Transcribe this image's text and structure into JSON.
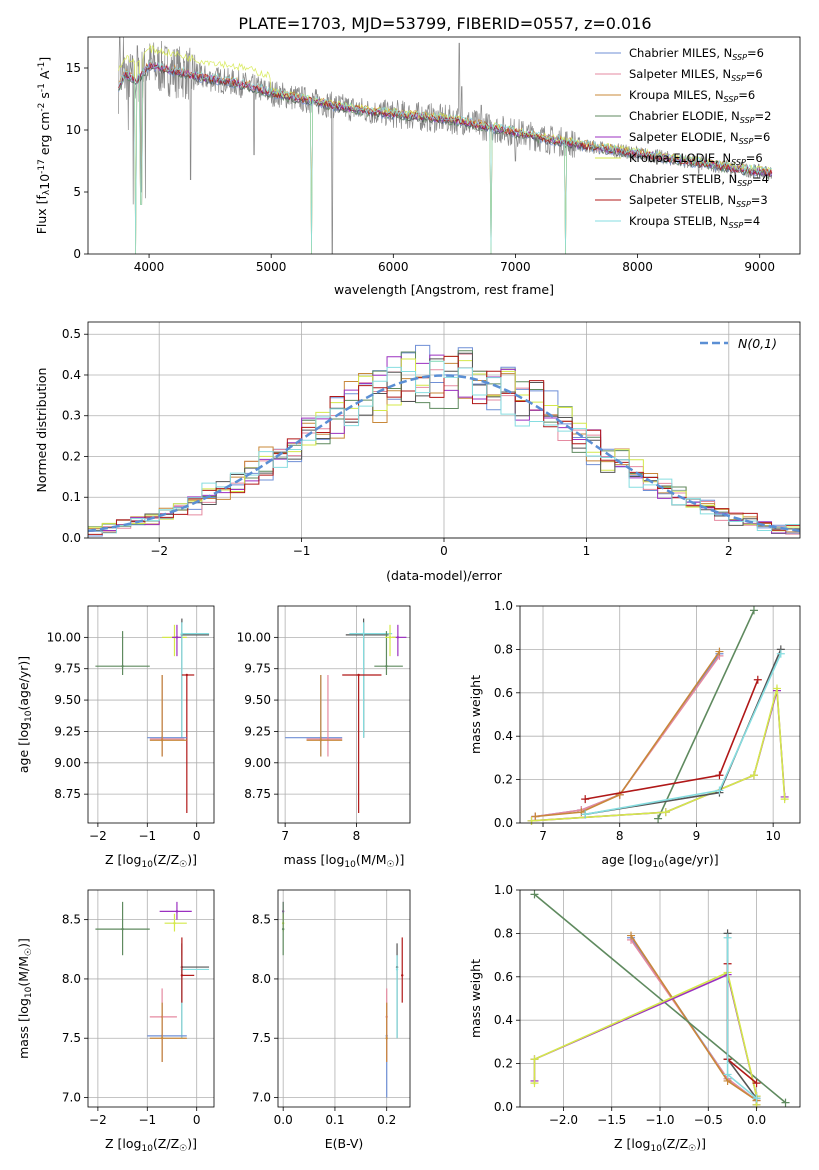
{
  "title": "PLATE=1703, MJD=53799, FIBERID=0557, z=0.016",
  "colors": {
    "Chabrier MILES": "#6f8fd6",
    "Salpeter MILES": "#e58aa0",
    "Kroupa MILES": "#c8883a",
    "Chabrier ELODIE": "#5f8a5f",
    "Salpeter ELODIE": "#9b30c0",
    "Kroupa ELODIE": "#d4e84a",
    "Chabrier STELIB": "#555555",
    "Salpeter STELIB": "#b01818",
    "Kroupa STELIB": "#86dde0",
    "data": "#888888",
    "normal": "#5b8fd4"
  },
  "chart_data": [
    {
      "id": "spectrum",
      "type": "line",
      "xlabel": "wavelength [Angstrom, rest frame]",
      "ylabel": "Flux [f",
      "ylabel_mid": "10",
      "ylabel_exp1": "-17",
      "ylabel_mid2": " erg cm",
      "ylabel_exp2": "-2",
      "ylabel_mid3": " s",
      "ylabel_exp3": "-1",
      "ylabel_mid4": " A",
      "ylabel_exp4": "-1",
      "ylabel_end": "]",
      "xlim": [
        3500,
        9330
      ],
      "ylim": [
        0,
        17.5
      ],
      "xticks": [
        4000,
        5000,
        6000,
        7000,
        8000,
        9000
      ],
      "yticks": [
        0,
        5,
        10,
        15
      ],
      "legend": "top-right",
      "legend_entries": [
        {
          "name": "Chabrier MILES",
          "n": "6"
        },
        {
          "name": "Salpeter MILES",
          "n": "6"
        },
        {
          "name": "Kroupa MILES",
          "n": "6"
        },
        {
          "name": "Chabrier ELODIE",
          "n": "2"
        },
        {
          "name": "Salpeter ELODIE",
          "n": "6"
        },
        {
          "name": "Kroupa ELODIE",
          "n": "6"
        },
        {
          "name": "Chabrier STELIB",
          "n": "4"
        },
        {
          "name": "Salpeter STELIB",
          "n": "3"
        },
        {
          "name": "Kroupa STELIB",
          "n": "4"
        }
      ],
      "nssp_label": "N",
      "nssp_sub": "SSP",
      "continuum": [
        [
          3750,
          13.5
        ],
        [
          3800,
          14.5
        ],
        [
          3900,
          14.0
        ],
        [
          4000,
          15.2
        ],
        [
          4100,
          15.0
        ],
        [
          4200,
          14.8
        ],
        [
          4400,
          14.3
        ],
        [
          4600,
          14.0
        ],
        [
          4800,
          13.6
        ],
        [
          5000,
          13.0
        ],
        [
          5200,
          12.6
        ],
        [
          5500,
          12.0
        ],
        [
          5800,
          11.5
        ],
        [
          6000,
          11.3
        ],
        [
          6300,
          11.0
        ],
        [
          6500,
          10.8
        ],
        [
          6800,
          10.2
        ],
        [
          7000,
          9.8
        ],
        [
          7300,
          9.2
        ],
        [
          7600,
          8.7
        ],
        [
          8000,
          8.1
        ],
        [
          8400,
          7.5
        ],
        [
          8800,
          6.9
        ],
        [
          9100,
          6.5
        ]
      ],
      "data_spikes": [
        [
          3760,
          17.5
        ],
        [
          3790,
          17.5
        ],
        [
          3830,
          10.0
        ],
        [
          3870,
          4.0
        ],
        [
          3905,
          16.8
        ],
        [
          3935,
          5.0
        ],
        [
          3970,
          4.5
        ],
        [
          4340,
          6.0
        ],
        [
          4860,
          8.0
        ],
        [
          5500,
          0
        ],
        [
          6540,
          17.0
        ],
        [
          6560,
          13.5
        ],
        [
          6720,
          12.0
        ],
        [
          7000,
          7.5
        ],
        [
          8500,
          6.5
        ],
        [
          8800,
          6.0
        ],
        [
          9050,
          7.0
        ]
      ],
      "model_dips": [
        [
          3890,
          0
        ],
        [
          3935,
          4
        ],
        [
          5330,
          0
        ],
        [
          6800,
          0
        ],
        [
          7410,
          0
        ]
      ]
    },
    {
      "id": "residuals",
      "type": "histogram",
      "xlabel": "(data-model)/error",
      "ylabel": "Normed distribution",
      "xlim": [
        -2.5,
        2.5
      ],
      "ylim": [
        0,
        0.53
      ],
      "xticks": [
        -2,
        -1,
        0,
        1,
        2
      ],
      "yticks": [
        0.0,
        0.1,
        0.2,
        0.3,
        0.4,
        0.5
      ],
      "grid": true,
      "legend": "top-right",
      "legend_label": "N(0,1)",
      "bin_width": 0.1
    },
    {
      "id": "z-age",
      "type": "scatter",
      "xlabel": "Z [log",
      "xlabel_sub": "10",
      "xlabel_end": "(Z/Z",
      "xlabel_sun": "☉",
      "xlabel_close": ")]",
      "ylabel": "age  [log",
      "ylabel_sub": "10",
      "ylabel_end": "(age/yr)]",
      "xlim": [
        -2.2,
        0.35
      ],
      "ylim": [
        8.52,
        10.25
      ],
      "xticks": [
        -2,
        -1,
        0
      ],
      "yticks": [
        8.75,
        9.0,
        9.25,
        9.5,
        9.75,
        10.0
      ],
      "grid": true
    },
    {
      "id": "mass-age",
      "type": "scatter",
      "xlabel": "mass [log",
      "xlabel_sub": "10",
      "xlabel_end": "(M/M",
      "xlabel_sun": "☉",
      "xlabel_close": ")]",
      "xlim": [
        6.9,
        8.75
      ],
      "ylim": [
        8.52,
        10.25
      ],
      "xticks": [
        7,
        8
      ],
      "yticks": [
        8.75,
        9.0,
        9.25,
        9.5,
        9.75,
        10.0
      ],
      "grid": true
    },
    {
      "id": "age-weight",
      "type": "line",
      "xlabel": "age  [log",
      "xlabel_sub": "10",
      "xlabel_end": "(age/yr)]",
      "ylabel": "mass weight",
      "xlim": [
        6.7,
        10.35
      ],
      "ylim": [
        0,
        1.0
      ],
      "xticks": [
        7,
        8,
        9,
        10
      ],
      "yticks": [
        0.0,
        0.2,
        0.4,
        0.6,
        0.8,
        1.0
      ],
      "grid": true,
      "series": [
        {
          "name": "Chabrier MILES",
          "x": [
            6.9,
            7.5,
            8.0,
            9.3
          ],
          "y": [
            0.03,
            0.06,
            0.13,
            0.78
          ]
        },
        {
          "name": "Salpeter MILES",
          "x": [
            6.9,
            7.5,
            8.0,
            9.3
          ],
          "y": [
            0.03,
            0.06,
            0.13,
            0.77
          ]
        },
        {
          "name": "Kroupa MILES",
          "x": [
            6.9,
            7.5,
            8.0,
            9.3
          ],
          "y": [
            0.03,
            0.05,
            0.13,
            0.79
          ]
        },
        {
          "name": "Chabrier ELODIE",
          "x": [
            8.5,
            9.75
          ],
          "y": [
            0.02,
            0.98
          ]
        },
        {
          "name": "Salpeter ELODIE",
          "x": [
            6.85,
            8.6,
            9.75,
            10.05,
            10.15
          ],
          "y": [
            0.01,
            0.05,
            0.22,
            0.61,
            0.12
          ]
        },
        {
          "name": "Kroupa ELODIE",
          "x": [
            6.85,
            8.6,
            9.75,
            10.05,
            10.15
          ],
          "y": [
            0.01,
            0.05,
            0.22,
            0.62,
            0.11
          ]
        },
        {
          "name": "Chabrier STELIB",
          "x": [
            7.55,
            9.3,
            10.1
          ],
          "y": [
            0.04,
            0.14,
            0.8
          ]
        },
        {
          "name": "Salpeter STELIB",
          "x": [
            7.55,
            9.3,
            9.8
          ],
          "y": [
            0.11,
            0.22,
            0.66
          ]
        },
        {
          "name": "Kroupa STELIB",
          "x": [
            7.55,
            9.3,
            10.1
          ],
          "y": [
            0.04,
            0.15,
            0.78
          ]
        }
      ]
    },
    {
      "id": "z-mass",
      "type": "scatter",
      "xlabel": "Z [log",
      "xlabel_sub": "10",
      "xlabel_end": "(Z/Z",
      "xlabel_sun": "☉",
      "xlabel_close": ")]",
      "ylabel": "mass [log",
      "ylabel_sub": "10",
      "ylabel_end": "(M/M",
      "ylabel_sun": "☉",
      "ylabel_close": ")]",
      "xlim": [
        -2.2,
        0.35
      ],
      "ylim": [
        6.92,
        8.75
      ],
      "xticks": [
        -2,
        -1,
        0
      ],
      "yticks": [
        7.0,
        7.5,
        8.0,
        8.5
      ],
      "grid": true
    },
    {
      "id": "ebv-mass",
      "type": "scatter",
      "xlabel": "E(B-V)",
      "xlim": [
        -0.01,
        0.245
      ],
      "ylim": [
        6.92,
        8.75
      ],
      "xticks": [
        0.0,
        0.1,
        0.2
      ],
      "yticks": [
        7.0,
        7.5,
        8.0,
        8.5
      ],
      "grid": true
    },
    {
      "id": "z-weight",
      "type": "line",
      "xlabel": "Z [log",
      "xlabel_sub": "10",
      "xlabel_end": "(Z/Z",
      "xlabel_sun": "☉",
      "xlabel_close": ")]",
      "ylabel": "mass weight",
      "xlim": [
        -2.45,
        0.45
      ],
      "ylim": [
        0,
        1.0
      ],
      "xticks": [
        -2.0,
        -1.5,
        -1.0,
        -0.5,
        0.0
      ],
      "yticks": [
        0.0,
        0.2,
        0.4,
        0.6,
        0.8,
        1.0
      ],
      "grid": true,
      "series": [
        {
          "name": "Chabrier MILES",
          "x": [
            -1.3,
            -0.3,
            0.0
          ],
          "y": [
            0.78,
            0.13,
            0.03
          ]
        },
        {
          "name": "Salpeter MILES",
          "x": [
            -1.3,
            -0.3,
            0.0
          ],
          "y": [
            0.77,
            0.13,
            0.03
          ]
        },
        {
          "name": "Kroupa MILES",
          "x": [
            -1.3,
            -0.3,
            0.0
          ],
          "y": [
            0.79,
            0.12,
            0.03
          ]
        },
        {
          "name": "Chabrier ELODIE",
          "x": [
            -2.3,
            0.3
          ],
          "y": [
            0.98,
            0.02
          ]
        },
        {
          "name": "Salpeter ELODIE",
          "x": [
            -2.3,
            -2.3,
            -0.3,
            0.0,
            0.0
          ],
          "y": [
            0.12,
            0.22,
            0.61,
            0.05,
            0.01
          ]
        },
        {
          "name": "Kroupa ELODIE",
          "x": [
            -2.3,
            -2.3,
            -0.3,
            0.0,
            0.0
          ],
          "y": [
            0.11,
            0.22,
            0.62,
            0.05,
            0.01
          ]
        },
        {
          "name": "Chabrier STELIB",
          "x": [
            -0.3,
            -0.3,
            0.0
          ],
          "y": [
            0.8,
            0.22,
            0.04
          ]
        },
        {
          "name": "Salpeter STELIB",
          "x": [
            -0.3,
            -0.3,
            0.0
          ],
          "y": [
            0.66,
            0.22,
            0.11
          ]
        },
        {
          "name": "Kroupa STELIB",
          "x": [
            -0.3,
            -0.3,
            0.0
          ],
          "y": [
            0.78,
            0.15,
            0.04
          ]
        }
      ]
    }
  ],
  "errorbars": {
    "z-age": [
      {
        "s": "Chabrier ELODIE",
        "x": -1.5,
        "xe": [
          -2.05,
          -0.95
        ],
        "y": 9.77,
        "ye": [
          9.7,
          10.05
        ]
      },
      {
        "s": "Kroupa ELODIE",
        "x": -0.45,
        "xe": [
          -0.7,
          -0.2
        ],
        "y": 10.0,
        "ye": [
          9.85,
          10.1
        ]
      },
      {
        "s": "Salpeter ELODIE",
        "x": -0.4,
        "xe": [
          -0.5,
          -0.3
        ],
        "y": 10.0,
        "ye": [
          9.85,
          10.1
        ]
      },
      {
        "s": "Chabrier STELIB",
        "x": -0.3,
        "xe": [
          -0.3,
          0.25
        ],
        "y": 10.02,
        "ye": [
          9.2,
          10.15
        ]
      },
      {
        "s": "Kroupa STELIB",
        "x": -0.3,
        "xe": [
          -0.3,
          0.25
        ],
        "y": 10.03,
        "ye": [
          9.2,
          10.12
        ]
      },
      {
        "s": "Salpeter STELIB",
        "x": -0.2,
        "xe": [
          -0.3,
          -0.05
        ],
        "y": 9.7,
        "ye": [
          8.6,
          9.7
        ]
      },
      {
        "s": "Chabrier MILES",
        "x": -0.7,
        "xe": [
          -1.0,
          -0.2
        ],
        "y": 9.2,
        "ye": [
          9.05,
          9.7
        ]
      },
      {
        "s": "Salpeter MILES",
        "x": -0.7,
        "xe": [
          -0.95,
          -0.25
        ],
        "y": 9.19,
        "ye": [
          9.05,
          9.7
        ]
      },
      {
        "s": "Kroupa MILES",
        "x": -0.7,
        "xe": [
          -0.95,
          -0.2
        ],
        "y": 9.18,
        "ye": [
          9.05,
          9.7
        ]
      }
    ],
    "mass-age": [
      {
        "s": "Chabrier MILES",
        "x": 7.5,
        "xe": [
          7.0,
          7.8
        ],
        "y": 9.2,
        "ye": [
          9.05,
          9.7
        ]
      },
      {
        "s": "Salpeter MILES",
        "x": 7.6,
        "xe": [
          7.3,
          7.8
        ],
        "y": 9.19,
        "ye": [
          9.05,
          9.7
        ]
      },
      {
        "s": "Kroupa MILES",
        "x": 7.5,
        "xe": [
          7.3,
          7.8
        ],
        "y": 9.18,
        "ye": [
          9.05,
          9.7
        ]
      },
      {
        "s": "Chabrier STELIB",
        "x": 8.1,
        "xe": [
          7.85,
          8.45
        ],
        "y": 10.02,
        "ye": [
          9.2,
          10.15
        ]
      },
      {
        "s": "Kroupa STELIB",
        "x": 8.1,
        "xe": [
          7.9,
          8.5
        ],
        "y": 10.03,
        "ye": [
          9.2,
          10.12
        ]
      },
      {
        "s": "Salpeter STELIB",
        "x": 8.03,
        "xe": [
          7.8,
          8.35
        ],
        "y": 9.7,
        "ye": [
          8.6,
          9.7
        ]
      },
      {
        "s": "Chabrier ELODIE",
        "x": 8.42,
        "xe": [
          8.25,
          8.65
        ],
        "y": 9.77,
        "ye": [
          9.7,
          10.05
        ]
      },
      {
        "s": "Salpeter ELODIE",
        "x": 8.58,
        "xe": [
          8.5,
          8.7
        ],
        "y": 10.0,
        "ye": [
          9.85,
          10.1
        ]
      },
      {
        "s": "Kroupa ELODIE",
        "x": 8.47,
        "xe": [
          8.4,
          8.55
        ],
        "y": 10.0,
        "ye": [
          9.85,
          10.1
        ]
      }
    ],
    "z-mass": [
      {
        "s": "Chabrier ELODIE",
        "x": -1.5,
        "xe": [
          -2.05,
          -0.95
        ],
        "y": 8.42,
        "ye": [
          8.2,
          8.65
        ]
      },
      {
        "s": "Salpeter ELODIE",
        "x": -0.4,
        "xe": [
          -0.75,
          -0.1
        ],
        "y": 8.57,
        "ye": [
          8.5,
          8.65
        ]
      },
      {
        "s": "Kroupa ELODIE",
        "x": -0.45,
        "xe": [
          -0.65,
          -0.2
        ],
        "y": 8.47,
        "ye": [
          8.4,
          8.55
        ]
      },
      {
        "s": "Chabrier STELIB",
        "x": -0.3,
        "xe": [
          -0.3,
          0.25
        ],
        "y": 8.1,
        "ye": [
          7.5,
          8.3
        ]
      },
      {
        "s": "Kroupa STELIB",
        "x": -0.3,
        "xe": [
          -0.3,
          0.25
        ],
        "y": 8.08,
        "ye": [
          7.5,
          8.2
        ]
      },
      {
        "s": "Salpeter STELIB",
        "x": -0.3,
        "xe": [
          -0.3,
          -0.05
        ],
        "y": 8.03,
        "ye": [
          7.8,
          8.35
        ]
      },
      {
        "s": "Chabrier MILES",
        "x": -0.7,
        "xe": [
          -1.0,
          -0.2
        ],
        "y": 7.52,
        "ye": [
          7.3,
          7.8
        ]
      },
      {
        "s": "Salpeter MILES",
        "x": -0.7,
        "xe": [
          -0.95,
          -0.4
        ],
        "y": 7.68,
        "ye": [
          7.3,
          7.92
        ]
      },
      {
        "s": "Kroupa MILES",
        "x": -0.7,
        "xe": [
          -0.95,
          -0.2
        ],
        "y": 7.5,
        "ye": [
          7.3,
          7.8
        ]
      }
    ],
    "ebv-mass": [
      {
        "s": "Salpeter ELODIE",
        "x": 0.0,
        "y": 8.57,
        "ye": [
          8.5,
          8.65
        ]
      },
      {
        "s": "Kroupa ELODIE",
        "x": 0.0,
        "y": 8.47,
        "ye": [
          8.4,
          8.55
        ]
      },
      {
        "s": "Chabrier ELODIE",
        "x": 0.0,
        "y": 8.42,
        "ye": [
          8.2,
          8.65
        ]
      },
      {
        "s": "Chabrier MILES",
        "x": 0.2,
        "y": 7.52,
        "ye": [
          7.0,
          7.8
        ]
      },
      {
        "s": "Salpeter MILES",
        "x": 0.2,
        "y": 7.68,
        "ye": [
          7.3,
          7.92
        ]
      },
      {
        "s": "Kroupa MILES",
        "x": 0.2,
        "y": 7.5,
        "ye": [
          7.3,
          7.8
        ]
      },
      {
        "s": "Chabrier STELIB",
        "x": 0.22,
        "y": 8.1,
        "ye": [
          7.5,
          8.3
        ]
      },
      {
        "s": "Kroupa STELIB",
        "x": 0.22,
        "y": 8.08,
        "ye": [
          7.5,
          8.2
        ]
      },
      {
        "s": "Salpeter STELIB",
        "x": 0.23,
        "y": 8.03,
        "ye": [
          7.8,
          8.35
        ]
      }
    ]
  }
}
